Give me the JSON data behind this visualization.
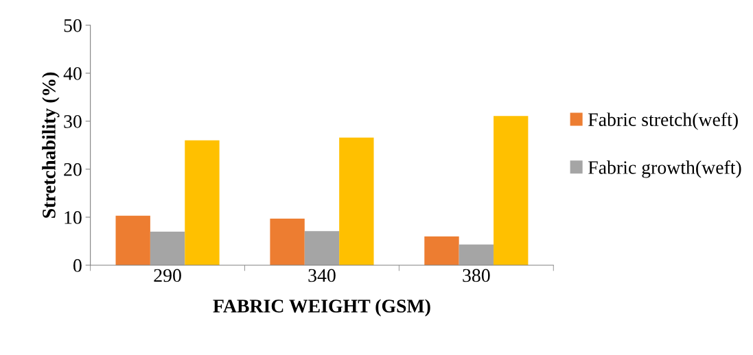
{
  "chart_data": {
    "type": "bar",
    "xlabel": "FABRIC WEIGHT (GSM)",
    "ylabel": "Stretchability (%)",
    "categories": [
      "290",
      "340",
      "380"
    ],
    "series": [
      {
        "name": "Fabric stretch(weft)",
        "color": "#ed7d31",
        "values": [
          10.3,
          9.7,
          6.0
        ]
      },
      {
        "name": "Fabric growth(weft)",
        "color": "#a5a5a5",
        "values": [
          7.0,
          7.1,
          4.3
        ]
      },
      {
        "color": "#ffc000",
        "values": [
          26.0,
          26.6,
          31.1
        ]
      }
    ],
    "ylim": [
      0,
      50
    ],
    "yticks": [
      0,
      10,
      20,
      30,
      40,
      50
    ],
    "grid": false,
    "legend": "right"
  }
}
